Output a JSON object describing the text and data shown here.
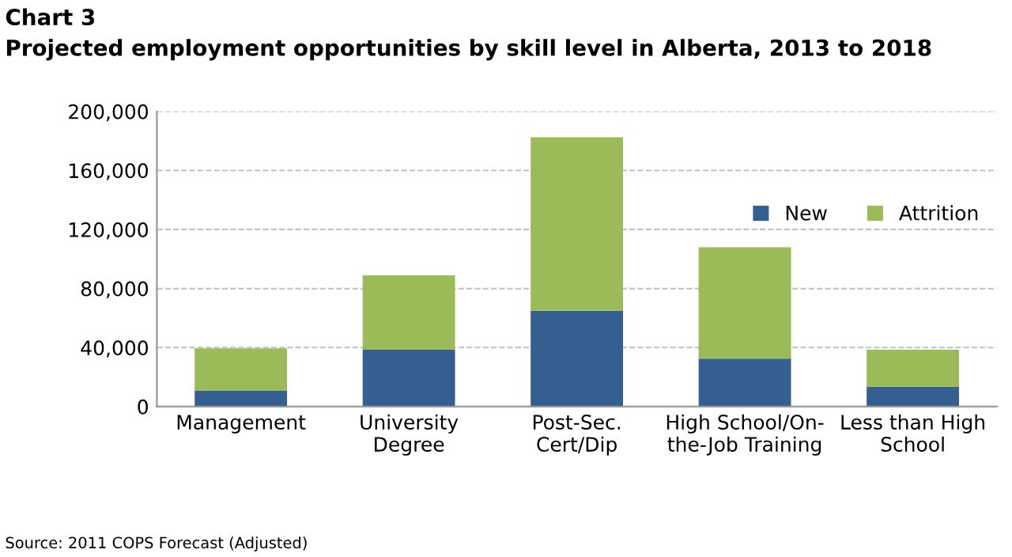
{
  "chart_data": {
    "type": "bar",
    "title": "Chart 3",
    "subtitle": "Projected employment opportunities by skill level in Alberta, 2013 to 2018",
    "categories": [
      "Management",
      "University\nDegree",
      "Post-Sec.\nCert/Dip",
      "High School/On-\nthe-Job Training",
      "Less than High\nSchool"
    ],
    "stacked": true,
    "series": [
      {
        "name": "New",
        "color": "#365f91",
        "values": [
          11000,
          38500,
          65000,
          32500,
          13500
        ]
      },
      {
        "name": "Attrition",
        "color": "#9bbb59",
        "values": [
          28500,
          50500,
          117500,
          75500,
          25000
        ]
      }
    ],
    "ylim": [
      0,
      200000
    ],
    "yticks": [
      {
        "value": 0,
        "label": "0"
      },
      {
        "value": 40000,
        "label": "40,000"
      },
      {
        "value": 80000,
        "label": "80,000"
      },
      {
        "value": 120000,
        "label": "120,000"
      },
      {
        "value": 160000,
        "label": "160,000"
      },
      {
        "value": 200000,
        "label": "200,000"
      }
    ],
    "grid": "y",
    "legend": "right",
    "annotations": [
      "Source: 2011 COPS Forecast (Adjusted)"
    ]
  }
}
